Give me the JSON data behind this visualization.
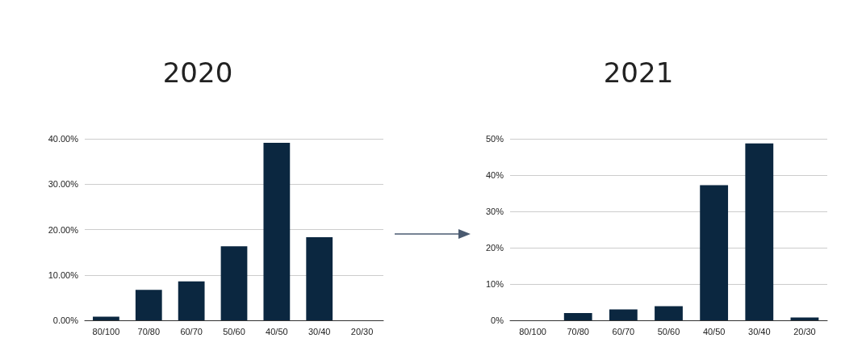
{
  "chart_data": [
    {
      "type": "bar",
      "title": "2020",
      "categories": [
        "80/100",
        "70/80",
        "60/70",
        "50/60",
        "40/50",
        "30/40",
        "20/30"
      ],
      "values": [
        0.8,
        6.7,
        8.6,
        16.3,
        39.1,
        18.3,
        0
      ],
      "color": "#0b2740",
      "ylim": [
        0,
        40
      ],
      "yticks": [
        {
          "value": 0,
          "label": "0.00%"
        },
        {
          "value": 10,
          "label": "10.00%"
        },
        {
          "value": 20,
          "label": "20.00%"
        },
        {
          "value": 30,
          "label": "30.00%"
        },
        {
          "value": 40,
          "label": "40.00%"
        }
      ],
      "grid": "y"
    },
    {
      "type": "bar",
      "title": "2021",
      "categories": [
        "80/100",
        "70/80",
        "60/70",
        "50/60",
        "40/50",
        "30/40",
        "20/30"
      ],
      "values": [
        0,
        2.0,
        3.0,
        3.9,
        37.2,
        48.7,
        0.8
      ],
      "color": "#0b2740",
      "ylim": [
        0,
        50
      ],
      "yticks": [
        {
          "value": 0,
          "label": "0%"
        },
        {
          "value": 10,
          "label": "10%"
        },
        {
          "value": 20,
          "label": "20%"
        },
        {
          "value": 30,
          "label": "30%"
        },
        {
          "value": 40,
          "label": "40%"
        },
        {
          "value": 50,
          "label": "50%"
        }
      ],
      "grid": "y"
    }
  ]
}
